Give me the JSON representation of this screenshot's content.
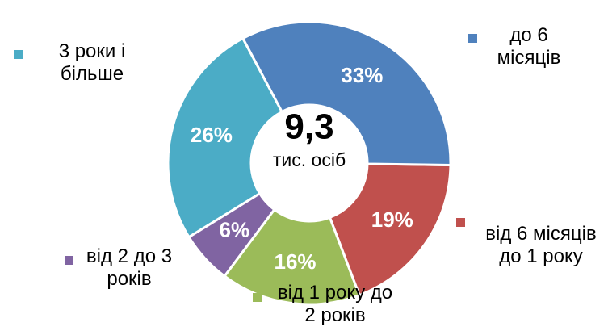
{
  "chart_data": {
    "type": "donut",
    "center_value": "9,3",
    "center_label": "тис. осіб",
    "categories": [
      "до 6 місяців",
      "від 6 місяців до 1 року",
      "від 1 року до 2 років",
      "від 2 до 3 років",
      "3 роки і більше"
    ],
    "values": [
      33,
      19,
      16,
      6,
      26
    ],
    "value_labels": [
      "33%",
      "19%",
      "16%",
      "6%",
      "26%"
    ],
    "colors": [
      "#4f81bd",
      "#c0504d",
      "#9bbb59",
      "#8064a2",
      "#4bacc6"
    ],
    "legend": true
  }
}
